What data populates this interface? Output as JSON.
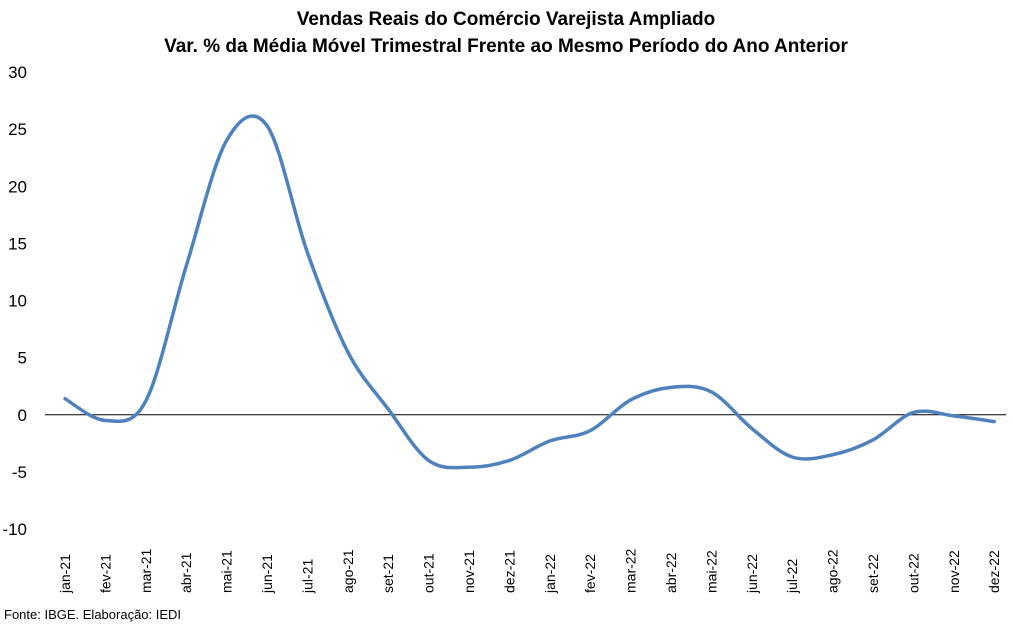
{
  "title_line1": "Vendas Reais do Comércio Varejista Ampliado",
  "title_line2": "Var. % da Média Móvel Trimestral Frente ao Mesmo Período do Ano Anterior",
  "source": "Fonte: IBGE. Elaboração: IEDI",
  "colors": {
    "line": "#4F81BD",
    "zero_line": "#000000",
    "text": "#000000"
  },
  "chart_data": {
    "type": "line",
    "title": "Vendas Reais do Comércio Varejista Ampliado",
    "subtitle": "Var. % da Média Móvel Trimestral Frente ao Mesmo Período do Ano Anterior",
    "categories": [
      "jan-21",
      "fev-21",
      "mar-21",
      "abr-21",
      "mai-21",
      "jun-21",
      "jul-21",
      "ago-21",
      "set-21",
      "out-21",
      "nov-21",
      "dez-21",
      "jan-22",
      "fev-22",
      "mar-22",
      "abr-22",
      "mai-22",
      "jun-22",
      "jul-22",
      "ago-22",
      "set-22",
      "out-22",
      "nov-22",
      "dez-22"
    ],
    "series": [
      {
        "values": [
          1.4,
          -0.5,
          1.2,
          13.0,
          24.0,
          25.3,
          14.2,
          5.5,
          0.5,
          -4.0,
          -4.6,
          -4.0,
          -2.3,
          -1.4,
          1.3,
          2.4,
          2.0,
          -1.2,
          -3.7,
          -3.5,
          -2.2,
          0.2,
          -0.1,
          -0.6
        ]
      }
    ],
    "ylim": [
      -10,
      30
    ],
    "yticks": [
      -10,
      -5,
      0,
      5,
      10,
      15,
      20,
      25,
      30
    ],
    "grid": false,
    "legend": "none"
  }
}
